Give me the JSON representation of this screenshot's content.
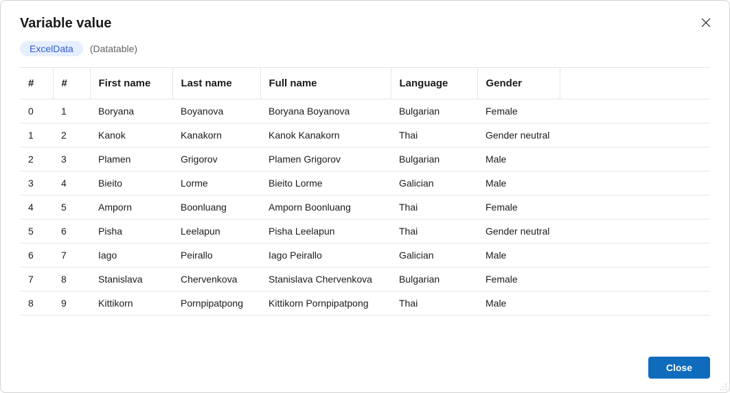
{
  "dialog": {
    "title": "Variable value",
    "variable_name": "ExcelData",
    "variable_type": "(Datatable)",
    "close_button_label": "Close"
  },
  "colors": {
    "badge_bg": "#e6efff",
    "badge_fg": "#2f5bd0",
    "border": "#e5e5e5",
    "primary_button_bg": "#0f6cbd",
    "primary_button_fg": "#ffffff",
    "text": "#1b1b1b",
    "muted_text": "#616161"
  },
  "table": {
    "columns": [
      "#",
      "#",
      "First name",
      "Last name",
      "Full name",
      "Language",
      "Gender"
    ],
    "rows": [
      [
        "0",
        "1",
        "Boryana",
        "Boyanova",
        "Boryana Boyanova",
        "Bulgarian",
        "Female"
      ],
      [
        "1",
        "2",
        "Kanok",
        "Kanakorn",
        "Kanok Kanakorn",
        "Thai",
        "Gender neutral"
      ],
      [
        "2",
        "3",
        "Plamen",
        "Grigorov",
        "Plamen Grigorov",
        "Bulgarian",
        "Male"
      ],
      [
        "3",
        "4",
        "Bieito",
        "Lorme",
        "Bieito Lorme",
        "Galician",
        "Male"
      ],
      [
        "4",
        "5",
        "Amporn",
        "Boonluang",
        "Amporn Boonluang",
        "Thai",
        "Female"
      ],
      [
        "5",
        "6",
        "Pisha",
        "Leelapun",
        "Pisha Leelapun",
        "Thai",
        "Gender neutral"
      ],
      [
        "6",
        "7",
        "Iago",
        "Peirallo",
        "Iago Peirallo",
        "Galician",
        "Male"
      ],
      [
        "7",
        "8",
        "Stanislava",
        "Chervenkova",
        "Stanislava Chervenkova",
        "Bulgarian",
        "Female"
      ],
      [
        "8",
        "9",
        "Kittikorn",
        "Pornpipatpong",
        "Kittikorn Pornpipatpong",
        "Thai",
        "Male"
      ]
    ]
  }
}
